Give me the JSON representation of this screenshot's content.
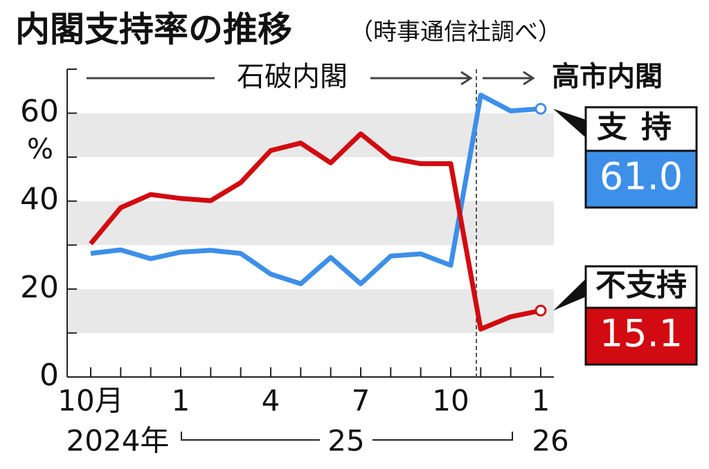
{
  "chart_data": {
    "type": "line",
    "title": "内閣支持率の推移",
    "subtitle": "（時事通信社調べ）",
    "unit_label": "%",
    "categories": [
      "10月",
      null,
      null,
      "1",
      null,
      null,
      "4",
      null,
      null,
      "7",
      null,
      null,
      "10",
      null,
      null,
      "1"
    ],
    "year_labels": [
      "2024年",
      "25",
      "26"
    ],
    "annotations": [
      "石破内閣",
      "高市内閣"
    ],
    "series": [
      {
        "name": "支持",
        "color": "#3d8fe8",
        "values": [
          28.1,
          28.9,
          26.9,
          28.4,
          28.8,
          28.1,
          23.4,
          21.2,
          27.2,
          21.2,
          27.5,
          28.0,
          25.4,
          64.1,
          60.5,
          61.0
        ],
        "value_labels": [
          null,
          null,
          null,
          null,
          null,
          null,
          null,
          null,
          null,
          null,
          null,
          null,
          null,
          null,
          null,
          "61.0"
        ]
      },
      {
        "name": "不支持",
        "color": "#d20a11",
        "values": [
          30.3,
          38.5,
          41.5,
          40.6,
          40.1,
          44.2,
          51.5,
          53.2,
          48.7,
          55.3,
          49.8,
          48.5,
          48.5,
          10.9,
          13.7,
          15.1
        ],
        "value_labels": [
          null,
          null,
          null,
          null,
          null,
          null,
          null,
          null,
          null,
          null,
          null,
          null,
          null,
          null,
          null,
          "15.1"
        ]
      }
    ],
    "ylim": [
      0,
      70
    ],
    "yticks": [
      0,
      20,
      40,
      60
    ],
    "yminorticks": [
      10,
      30,
      50,
      70
    ],
    "grid": "bands"
  }
}
